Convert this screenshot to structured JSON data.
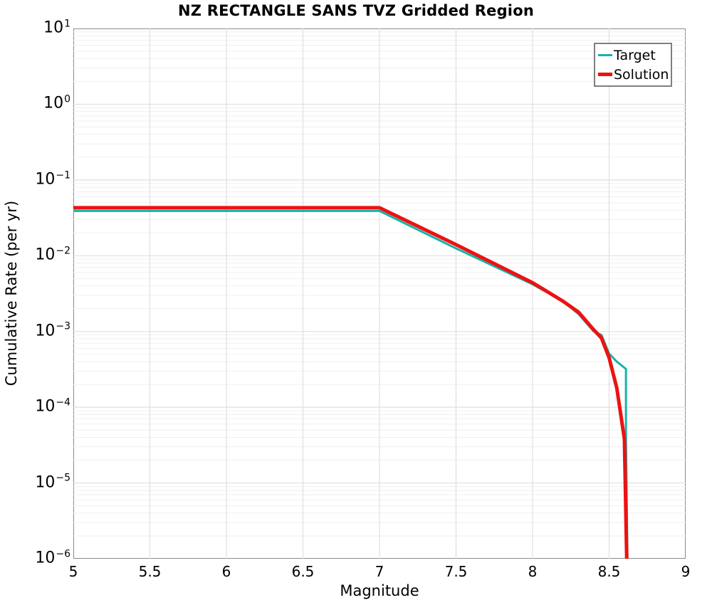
{
  "chart_data": {
    "type": "line",
    "title": "NZ RECTANGLE SANS TVZ Gridded Region",
    "xlabel": "Magnitude",
    "ylabel": "Cumulative Rate (per yr)",
    "x_axis": {
      "min": 5,
      "max": 9,
      "scale": "linear"
    },
    "y_axis": {
      "min_exp": -6,
      "max_exp": 1,
      "scale": "log10"
    },
    "x_tick_labels": [
      "5",
      "5.5",
      "6",
      "6.5",
      "7",
      "7.5",
      "8",
      "8.5",
      "9"
    ],
    "y_tick_base": "10",
    "y_tick_exponents": [
      "1",
      "0",
      "−1",
      "−2",
      "−3",
      "−4",
      "−5",
      "−6"
    ],
    "grid": {
      "major": true,
      "minor_log_horizontal": true,
      "major_color": "#dfdfdf",
      "minor_color": "#efefef"
    },
    "axis_border_color": "#8a8a8a",
    "legend": {
      "position": "top-right",
      "border_color": "#7f7f7f"
    },
    "series": [
      {
        "name": "Target",
        "color": "#17b3ab",
        "line_width": 3,
        "points": [
          [
            5.0,
            0.039
          ],
          [
            7.0,
            0.039
          ],
          [
            7.5,
            0.0125
          ],
          [
            8.0,
            0.0042
          ],
          [
            8.2,
            0.0025
          ],
          [
            8.3,
            0.0017
          ],
          [
            8.4,
            0.001
          ],
          [
            8.45,
            0.0009
          ],
          [
            8.5,
            0.00051
          ],
          [
            8.55,
            0.0004
          ],
          [
            8.61,
            0.00032
          ],
          [
            8.61,
            4.2e-05
          ],
          [
            8.62,
            1e-06
          ]
        ]
      },
      {
        "name": "Solution",
        "color": "#ee1111",
        "line_width": 5,
        "points": [
          [
            5.0,
            0.043
          ],
          [
            7.0,
            0.043
          ],
          [
            7.5,
            0.014
          ],
          [
            8.0,
            0.0044
          ],
          [
            8.2,
            0.0025
          ],
          [
            8.3,
            0.0018
          ],
          [
            8.4,
            0.00105
          ],
          [
            8.45,
            0.00082
          ],
          [
            8.5,
            0.00045
          ],
          [
            8.55,
            0.00018
          ],
          [
            8.6,
            3.8e-05
          ],
          [
            8.615,
            1e-06
          ]
        ]
      }
    ]
  }
}
